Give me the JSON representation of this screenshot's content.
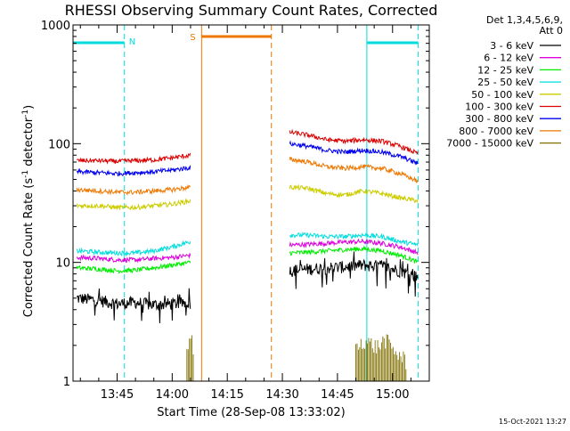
{
  "chart_data": {
    "type": "line",
    "title": "RHESSI Observing Summary Count Rates, Corrected",
    "xlabel": "Start Time (28-Sep-08 13:33:02)",
    "ylabel": "Corrected Count Rate (s⁻¹ detector⁻¹)",
    "ylabel_parts": {
      "a": "Corrected Count Rate (s",
      "b": "-1",
      "c": " detector",
      "d": "-1",
      "e": ")"
    },
    "y_scale": "log",
    "ylim": [
      1,
      1000
    ],
    "xlim": [
      "13:33",
      "15:10"
    ],
    "x_ticks": [
      "13:45",
      "14:00",
      "14:15",
      "14:30",
      "14:45",
      "15:00"
    ],
    "y_ticks": [
      "1",
      "10",
      "100",
      "1000"
    ],
    "legend_header": [
      "Det 1,3,4,5,6,9,",
      "Att 0"
    ],
    "legend_position": "right",
    "grid": false,
    "series": [
      {
        "name": "3 - 6 keV",
        "color": "#000000",
        "segments": [
          {
            "x": [
              "13:34",
              "13:40",
              "13:45",
              "13:50",
              "13:55",
              "14:00",
              "14:05"
            ],
            "y": [
              5.0,
              4.8,
              4.5,
              4.6,
              4.4,
              4.5,
              4.6
            ]
          },
          {
            "x": [
              "14:32",
              "14:37",
              "14:42",
              "14:47",
              "14:52",
              "14:57",
              "15:02",
              "15:07"
            ],
            "y": [
              8.5,
              8.8,
              9.0,
              9.2,
              9.5,
              9.3,
              8.5,
              7.5
            ]
          }
        ]
      },
      {
        "name": "6 - 12 keV",
        "color": "#dd00dd",
        "segments": [
          {
            "x": [
              "13:34",
              "13:40",
              "13:45",
              "13:50",
              "13:55",
              "14:00",
              "14:05"
            ],
            "y": [
              11,
              10.8,
              10.5,
              10.5,
              10.8,
              11,
              11.5
            ]
          },
          {
            "x": [
              "14:32",
              "14:37",
              "14:42",
              "14:47",
              "14:52",
              "14:57",
              "15:02",
              "15:07"
            ],
            "y": [
              14,
              14.2,
              14.5,
              14.8,
              15,
              14.5,
              13.5,
              12
            ]
          }
        ]
      },
      {
        "name": "12 - 25 keV",
        "color": "#00ee00",
        "segments": [
          {
            "x": [
              "13:34",
              "13:40",
              "13:45",
              "13:50",
              "13:55",
              "14:00",
              "14:05"
            ],
            "y": [
              9,
              8.8,
              8.5,
              8.6,
              9,
              9.5,
              10
            ]
          },
          {
            "x": [
              "14:32",
              "14:37",
              "14:42",
              "14:47",
              "14:52",
              "14:57",
              "15:02",
              "15:07"
            ],
            "y": [
              12,
              12.2,
              12.5,
              12.8,
              13,
              12.5,
              11.5,
              10
            ]
          }
        ]
      },
      {
        "name": "25 - 50 keV",
        "color": "#00dddd",
        "segments": [
          {
            "x": [
              "13:34",
              "13:40",
              "13:45",
              "13:50",
              "13:55",
              "14:00",
              "14:05"
            ],
            "y": [
              12.5,
              12.2,
              12,
              12,
              12.5,
              13.5,
              15
            ]
          },
          {
            "x": [
              "14:32",
              "14:37",
              "14:42",
              "14:47",
              "14:52",
              "14:57",
              "15:02",
              "15:07"
            ],
            "y": [
              17,
              17,
              16.5,
              16.5,
              17,
              16.5,
              15,
              14
            ]
          }
        ]
      },
      {
        "name": "50 - 100 keV",
        "color": "#cccc00",
        "segments": [
          {
            "x": [
              "13:34",
              "13:40",
              "13:45",
              "13:50",
              "13:55",
              "14:00",
              "14:05"
            ],
            "y": [
              30,
              30,
              29,
              29,
              30,
              31,
              33
            ]
          },
          {
            "x": [
              "14:32",
              "14:37",
              "14:42",
              "14:47",
              "14:52",
              "14:57",
              "15:02",
              "15:07"
            ],
            "y": [
              43,
              42,
              38,
              37,
              40,
              38,
              35,
              33
            ]
          }
        ]
      },
      {
        "name": "100 - 300 keV",
        "color": "#dd0000",
        "segments": [
          {
            "x": [
              "13:34",
              "13:40",
              "13:45",
              "13:50",
              "13:55",
              "14:00",
              "14:05"
            ],
            "y": [
              72,
              72,
              71,
              72,
              73,
              76,
              80
            ]
          },
          {
            "x": [
              "14:32",
              "14:37",
              "14:42",
              "14:47",
              "14:52",
              "14:57",
              "15:02",
              "15:07"
            ],
            "y": [
              125,
              118,
              108,
              105,
              108,
              105,
              95,
              82
            ]
          }
        ]
      },
      {
        "name": "300 - 800 keV",
        "color": "#0000ee",
        "segments": [
          {
            "x": [
              "13:34",
              "13:40",
              "13:45",
              "13:50",
              "13:55",
              "14:00",
              "14:05"
            ],
            "y": [
              58,
              57,
              56,
              57,
              58,
              60,
              63
            ]
          },
          {
            "x": [
              "14:32",
              "14:37",
              "14:42",
              "14:47",
              "14:52",
              "14:57",
              "15:02",
              "15:07"
            ],
            "y": [
              100,
              95,
              88,
              85,
              88,
              85,
              78,
              68
            ]
          }
        ]
      },
      {
        "name": "800 - 7000 keV",
        "color": "#ee7700",
        "segments": [
          {
            "x": [
              "13:34",
              "13:40",
              "13:45",
              "13:50",
              "13:55",
              "14:00",
              "14:05"
            ],
            "y": [
              41,
              40,
              39,
              39,
              40,
              41,
              43
            ]
          },
          {
            "x": [
              "14:32",
              "14:37",
              "14:42",
              "14:47",
              "14:52",
              "14:57",
              "15:02",
              "15:07"
            ],
            "y": [
              74,
              70,
              64,
              62,
              64,
              62,
              56,
              48
            ]
          }
        ]
      },
      {
        "name": "7000 - 15000 keV",
        "color": "#807000",
        "segments": [
          {
            "x": [
              "14:04",
              "14:05",
              "14:06"
            ],
            "y": [
              1.6,
              2.3,
              1.8
            ]
          },
          {
            "x": [
              "14:50",
              "14:52",
              "14:54",
              "14:56",
              "14:58",
              "15:00",
              "15:02",
              "15:04"
            ],
            "y": [
              1.8,
              2.2,
              2.0,
              1.9,
              2.2,
              1.8,
              1.6,
              1.4
            ]
          }
        ]
      }
    ],
    "annotations": {
      "night_color": "#00dddd",
      "saa_color": "#ee7700",
      "night_label": "N",
      "saa_label": "S",
      "nights": [
        {
          "start": "13:33",
          "end": "13:47"
        },
        {
          "start": "14:53",
          "end": "15:07"
        }
      ],
      "saa": {
        "start": "14:08",
        "end": "14:27"
      }
    },
    "footer": "15-Oct-2021 13:27"
  }
}
